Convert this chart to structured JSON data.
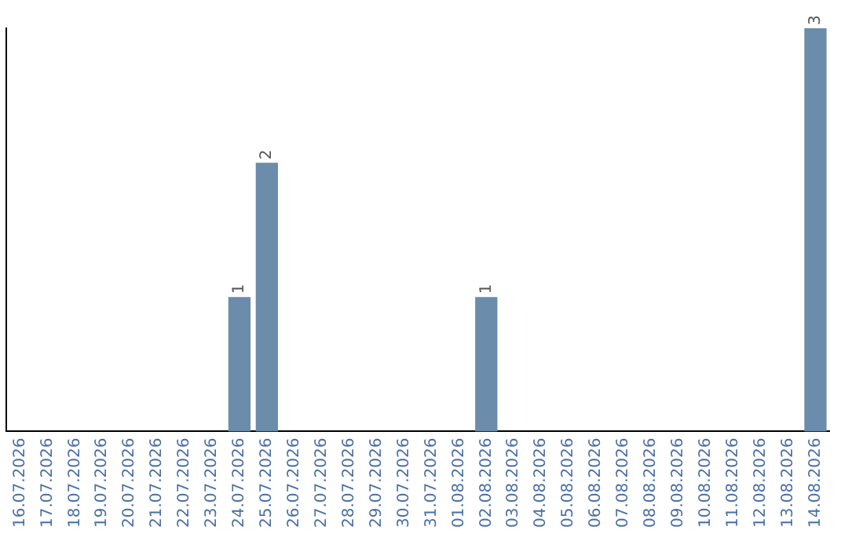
{
  "chart_data": {
    "type": "bar",
    "categories": [
      "16.07.2026",
      "17.07.2026",
      "18.07.2026",
      "19.07.2026",
      "20.07.2026",
      "21.07.2026",
      "22.07.2026",
      "23.07.2026",
      "24.07.2026",
      "25.07.2026",
      "26.07.2026",
      "27.07.2026",
      "28.07.2026",
      "29.07.2026",
      "30.07.2026",
      "31.07.2026",
      "01.08.2026",
      "02.08.2026",
      "03.08.2026",
      "04.08.2026",
      "05.08.2026",
      "06.08.2026",
      "07.08.2026",
      "08.08.2026",
      "09.08.2026",
      "10.08.2026",
      "11.08.2026",
      "12.08.2026",
      "13.08.2026",
      "14.08.2026"
    ],
    "values": [
      0,
      0,
      0,
      0,
      0,
      0,
      0,
      0,
      1,
      2,
      0,
      0,
      0,
      0,
      0,
      0,
      0,
      1,
      0,
      0,
      0,
      0,
      0,
      0,
      0,
      0,
      0,
      0,
      0,
      3
    ],
    "value_labels": [
      null,
      null,
      null,
      null,
      null,
      null,
      null,
      null,
      "1",
      "2",
      null,
      null,
      null,
      null,
      null,
      null,
      null,
      "1",
      null,
      null,
      null,
      null,
      null,
      null,
      null,
      null,
      null,
      null,
      null,
      "3"
    ],
    "color": "#6b8cab",
    "grid": false,
    "legend": false
  }
}
